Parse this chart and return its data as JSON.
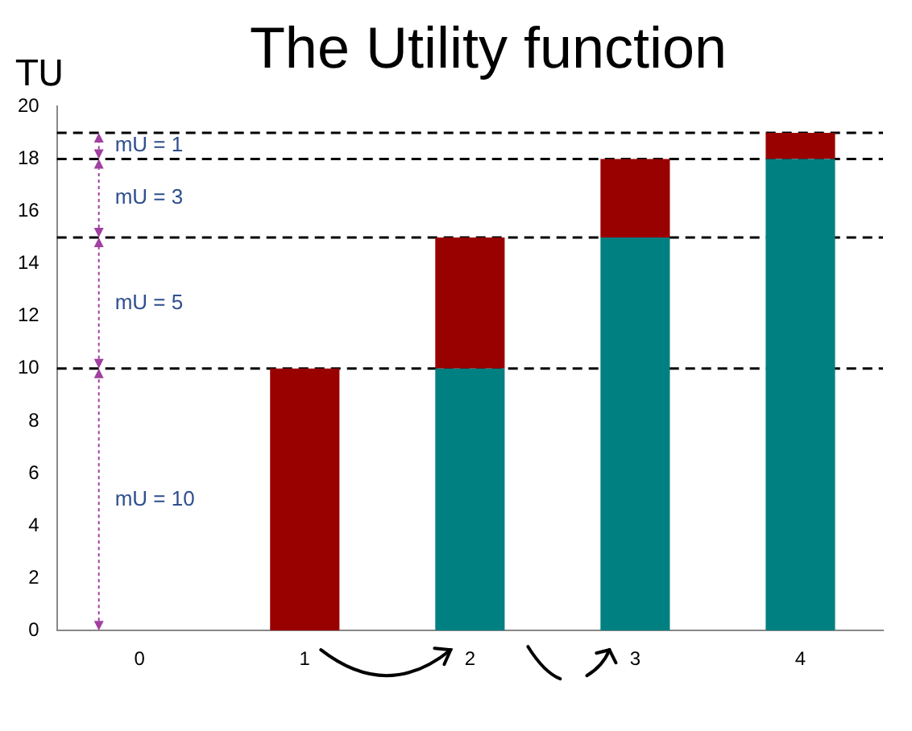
{
  "chart_data": {
    "type": "bar",
    "title": "The Utility function",
    "ylabel": "TU",
    "categories": [
      "0",
      "1",
      "2",
      "3",
      "4"
    ],
    "stacked": true,
    "series": [
      {
        "color": "#008080",
        "values": [
          0,
          0,
          10,
          15,
          18
        ]
      },
      {
        "color": "#990000",
        "values": [
          0,
          10,
          5,
          3,
          1
        ]
      }
    ],
    "ylim": [
      0,
      20
    ],
    "yticks": [
      0,
      2,
      4,
      6,
      8,
      10,
      12,
      14,
      16,
      18,
      20
    ],
    "grid": false,
    "legend": false,
    "ref_lines": [
      {
        "axis": "y",
        "value": 10,
        "line_style": "dashed",
        "color": "#000000"
      },
      {
        "axis": "y",
        "value": 15,
        "line_style": "dashed",
        "color": "#000000"
      },
      {
        "axis": "y",
        "value": 18,
        "line_style": "dashed",
        "color": "#000000"
      },
      {
        "axis": "y",
        "value": 19,
        "line_style": "dashed",
        "color": "#000000"
      }
    ],
    "annotations": [
      "mU = 1",
      "mU = 3",
      "mU = 5",
      "mU = 10"
    ]
  }
}
